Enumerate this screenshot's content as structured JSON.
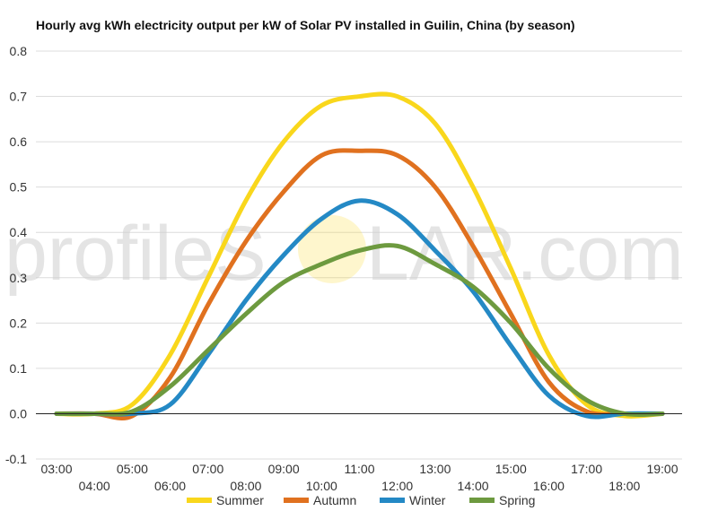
{
  "chart_data": {
    "type": "line",
    "title": "Hourly avg kWh electricity output per kW of Solar PV installed in Guilin, China (by season)",
    "xlabel": "",
    "ylabel": "",
    "x": [
      "03:00",
      "04:00",
      "05:00",
      "06:00",
      "07:00",
      "08:00",
      "09:00",
      "10:00",
      "11:00",
      "12:00",
      "13:00",
      "14:00",
      "15:00",
      "16:00",
      "17:00",
      "18:00",
      "19:00"
    ],
    "ylim": [
      -0.1,
      0.8
    ],
    "yticks": [
      "-0.1",
      "0.0",
      "0.1",
      "0.2",
      "0.3",
      "0.4",
      "0.5",
      "0.6",
      "0.7",
      "0.8"
    ],
    "grid": true,
    "legend_position": "bottom",
    "series": [
      {
        "name": "Summer",
        "color": "#F9D71C",
        "values": [
          0.0,
          0.0,
          0.02,
          0.13,
          0.3,
          0.47,
          0.6,
          0.68,
          0.7,
          0.7,
          0.64,
          0.5,
          0.32,
          0.13,
          0.02,
          -0.005,
          0.0
        ]
      },
      {
        "name": "Autumn",
        "color": "#E0711F",
        "values": [
          0.0,
          0.0,
          -0.005,
          0.08,
          0.24,
          0.38,
          0.49,
          0.57,
          0.58,
          0.57,
          0.5,
          0.37,
          0.22,
          0.07,
          0.005,
          0.0,
          0.0
        ]
      },
      {
        "name": "Winter",
        "color": "#2489C5",
        "values": [
          0.0,
          0.0,
          0.0,
          0.02,
          0.13,
          0.25,
          0.35,
          0.43,
          0.47,
          0.44,
          0.36,
          0.27,
          0.15,
          0.04,
          -0.005,
          0.0,
          0.0
        ]
      },
      {
        "name": "Spring",
        "color": "#6D9A3F",
        "values": [
          0.0,
          0.0,
          0.005,
          0.06,
          0.14,
          0.22,
          0.29,
          0.33,
          0.36,
          0.37,
          0.33,
          0.28,
          0.2,
          0.1,
          0.03,
          0.0,
          0.0
        ]
      }
    ]
  },
  "watermark": {
    "left": "profileS",
    "right": "LAR.com",
    "sun_color": "#F9D71C"
  }
}
